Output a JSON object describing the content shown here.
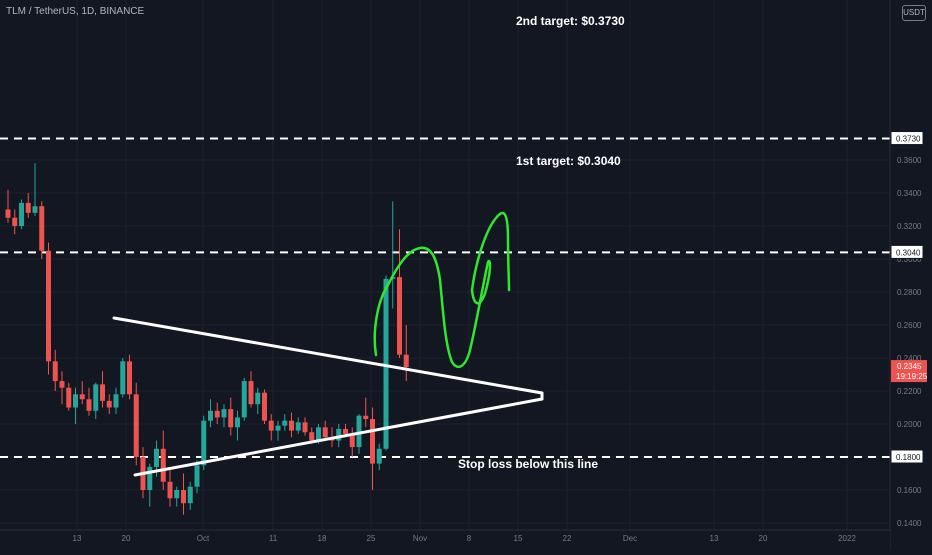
{
  "header": {
    "symbol_line": "TLM / TetherUS, 1D, BINANCE",
    "currency_badge": "USDT"
  },
  "colors": {
    "background": "#131722",
    "up": "#26a69a",
    "down": "#ef5350",
    "annotation_white": "#ffffff",
    "annotation_green": "#2ee82e",
    "axis_text": "#787b86"
  },
  "annotations": {
    "target2": "2nd target: $0.3730",
    "target1": "1st target: $0.3040",
    "stop": "Stop loss below this line"
  },
  "chart_data": {
    "type": "candlestick",
    "title": "TLM / TetherUS, 1D, BINANCE",
    "yaxis": {
      "min": 0.14,
      "max": 0.38,
      "ticks": [
        "0.1400",
        "0.1600",
        "0.1800",
        "0.2000",
        "0.2200",
        "0.2400",
        "0.2600",
        "0.2800",
        "0.3000",
        "0.3200",
        "0.3400",
        "0.3600"
      ]
    },
    "xaxis_labels": [
      {
        "label": "13",
        "day": 0
      },
      {
        "label": "20",
        "day": 7
      },
      {
        "label": "Oct",
        "day": 18
      },
      {
        "label": "11",
        "day": 28
      },
      {
        "label": "18",
        "day": 35
      },
      {
        "label": "25",
        "day": 42
      },
      {
        "label": "Nov",
        "day": 49
      },
      {
        "label": "8",
        "day": 56
      },
      {
        "label": "15",
        "day": 63
      },
      {
        "label": "22",
        "day": 70
      },
      {
        "label": "Dec",
        "day": 79
      },
      {
        "label": "13",
        "day": 91
      },
      {
        "label": "20",
        "day": 98
      },
      {
        "label": "2022",
        "day": 110
      }
    ],
    "price_labels": [
      {
        "value": "0.3730",
        "price": 0.373,
        "style": "outline"
      },
      {
        "value": "0.3040",
        "price": 0.304,
        "style": "outline"
      },
      {
        "value": "0.1800",
        "price": 0.18,
        "style": "outline"
      },
      {
        "value": "0.2345",
        "time": "19:19:25",
        "price": 0.2345,
        "style": "current"
      }
    ],
    "horizontal_lines": [
      0.373,
      0.304,
      0.18
    ],
    "candles": [
      [
        0.33,
        0.342,
        0.322,
        0.325
      ],
      [
        0.325,
        0.33,
        0.315,
        0.32
      ],
      [
        0.32,
        0.336,
        0.318,
        0.334
      ],
      [
        0.334,
        0.34,
        0.325,
        0.328
      ],
      [
        0.328,
        0.358,
        0.326,
        0.332
      ],
      [
        0.332,
        0.335,
        0.3,
        0.305
      ],
      [
        0.305,
        0.31,
        0.23,
        0.238
      ],
      [
        0.238,
        0.245,
        0.22,
        0.226
      ],
      [
        0.226,
        0.232,
        0.212,
        0.222
      ],
      [
        0.222,
        0.225,
        0.208,
        0.21
      ],
      [
        0.21,
        0.222,
        0.2,
        0.218
      ],
      [
        0.218,
        0.226,
        0.212,
        0.215
      ],
      [
        0.215,
        0.222,
        0.205,
        0.208
      ],
      [
        0.208,
        0.225,
        0.203,
        0.224
      ],
      [
        0.224,
        0.232,
        0.21,
        0.214
      ],
      [
        0.214,
        0.218,
        0.206,
        0.21
      ],
      [
        0.21,
        0.222,
        0.206,
        0.218
      ],
      [
        0.218,
        0.24,
        0.216,
        0.238
      ],
      [
        0.238,
        0.242,
        0.215,
        0.218
      ],
      [
        0.218,
        0.225,
        0.175,
        0.18
      ],
      [
        0.18,
        0.186,
        0.155,
        0.16
      ],
      [
        0.16,
        0.176,
        0.15,
        0.174
      ],
      [
        0.174,
        0.19,
        0.168,
        0.185
      ],
      [
        0.185,
        0.196,
        0.16,
        0.165
      ],
      [
        0.165,
        0.172,
        0.15,
        0.155
      ],
      [
        0.155,
        0.162,
        0.15,
        0.16
      ],
      [
        0.16,
        0.17,
        0.145,
        0.152
      ],
      [
        0.152,
        0.165,
        0.148,
        0.162
      ],
      [
        0.162,
        0.178,
        0.158,
        0.175
      ],
      [
        0.175,
        0.205,
        0.172,
        0.202
      ],
      [
        0.202,
        0.215,
        0.198,
        0.208
      ],
      [
        0.208,
        0.213,
        0.2,
        0.204
      ],
      [
        0.204,
        0.212,
        0.198,
        0.209
      ],
      [
        0.209,
        0.216,
        0.193,
        0.198
      ],
      [
        0.198,
        0.208,
        0.19,
        0.204
      ],
      [
        0.204,
        0.228,
        0.202,
        0.226
      ],
      [
        0.226,
        0.232,
        0.21,
        0.212
      ],
      [
        0.212,
        0.222,
        0.206,
        0.219
      ],
      [
        0.219,
        0.221,
        0.2,
        0.202
      ],
      [
        0.202,
        0.206,
        0.19,
        0.196
      ],
      [
        0.196,
        0.202,
        0.19,
        0.199
      ],
      [
        0.199,
        0.206,
        0.196,
        0.202
      ],
      [
        0.202,
        0.207,
        0.192,
        0.196
      ],
      [
        0.196,
        0.204,
        0.194,
        0.201
      ],
      [
        0.201,
        0.204,
        0.193,
        0.195
      ],
      [
        0.195,
        0.198,
        0.188,
        0.19
      ],
      [
        0.19,
        0.2,
        0.188,
        0.198
      ],
      [
        0.198,
        0.202,
        0.19,
        0.192
      ],
      [
        0.192,
        0.198,
        0.186,
        0.19
      ],
      [
        0.19,
        0.2,
        0.186,
        0.197
      ],
      [
        0.197,
        0.2,
        0.192,
        0.194
      ],
      [
        0.194,
        0.198,
        0.18,
        0.186
      ],
      [
        0.186,
        0.206,
        0.182,
        0.205
      ],
      [
        0.205,
        0.216,
        0.198,
        0.203
      ],
      [
        0.203,
        0.21,
        0.16,
        0.176
      ],
      [
        0.176,
        0.188,
        0.172,
        0.185
      ],
      [
        0.185,
        0.29,
        0.184,
        0.288
      ],
      [
        0.288,
        0.335,
        0.27,
        0.289
      ],
      [
        0.289,
        0.318,
        0.24,
        0.242
      ],
      [
        0.242,
        0.26,
        0.226,
        0.2345
      ]
    ]
  }
}
